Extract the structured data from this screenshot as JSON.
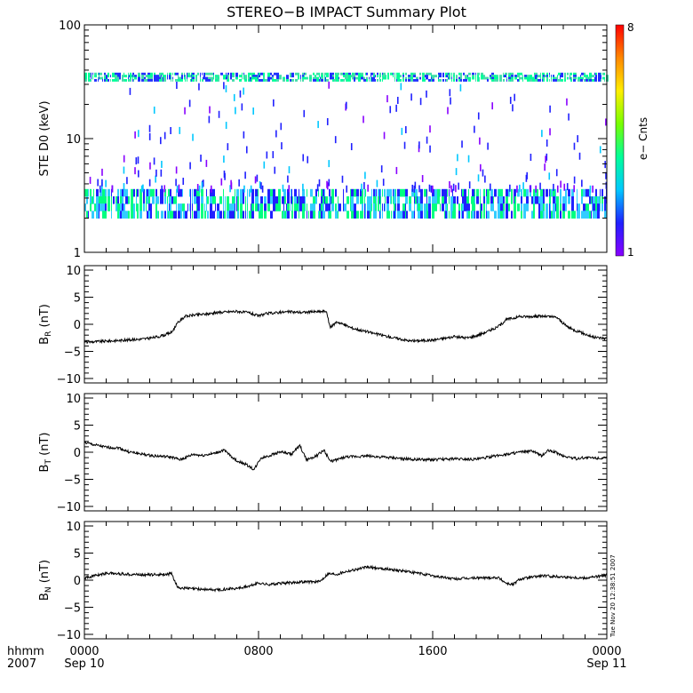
{
  "title": "STEREO−B IMPACT Summary Plot",
  "timestamp": "Tue Nov 20 12:38:51 2007",
  "footer": {
    "hhmm_label": "hhmm",
    "year_label": "2007"
  },
  "colorbar": {
    "label": "e− Cnts",
    "top_label": "8",
    "bottom_label": "1",
    "colors": [
      "#8800ff",
      "#2020ff",
      "#00c8ff",
      "#00ff99",
      "#77ff00",
      "#ffee00",
      "#ff8800",
      "#ff0000"
    ]
  },
  "chart_data": [
    {
      "type": "heatmap",
      "title": "STEREO−B IMPACT Summary Plot",
      "ylabel": "STE D0 (keV)",
      "yscale": "log",
      "ylim": [
        1,
        100
      ],
      "xlim_hours": [
        0,
        24
      ],
      "ytick_labels": [
        "1",
        "10",
        "100"
      ],
      "bands": [
        {
          "range_keV": [
            2.0,
            3.6
          ],
          "dominant_colors": [
            "#00ff80",
            "#33ccff",
            "#2020ff"
          ]
        },
        {
          "range_keV": [
            32,
            38
          ],
          "dominant_colors": [
            "#00ff99",
            "#44ddaa",
            "#2030ff"
          ]
        }
      ],
      "colorbar": {
        "label": "e− Cnts",
        "range": [
          1,
          8
        ]
      }
    },
    {
      "type": "line",
      "ylabel_main": "B",
      "ylabel_sub": "R",
      "ylabel_unit": " (nT)",
      "ylim": [
        -10,
        10
      ],
      "yticks": [
        "10",
        "5",
        "0",
        "−5",
        "−10"
      ],
      "x_hours": [
        0,
        1,
        2,
        3,
        3.6,
        4,
        4.3,
        4.6,
        5,
        5.6,
        6,
        6.6,
        7,
        7.6,
        8,
        8.4,
        9,
        9.4,
        10,
        10.6,
        11.1,
        11.3,
        11.6,
        12.3,
        13,
        14,
        15,
        16,
        17,
        17.6,
        18,
        18.6,
        19,
        19.4,
        20,
        21,
        21.7,
        22.1,
        22.4,
        23,
        23.4,
        24
      ],
      "y_nT": [
        -3.3,
        -3.1,
        -2.9,
        -2.6,
        -2.1,
        -1.5,
        0.3,
        1.4,
        1.7,
        1.9,
        2.1,
        2.3,
        2.4,
        2.1,
        1.5,
        2.0,
        2.2,
        2.3,
        2.2,
        2.3,
        2.4,
        -0.6,
        0.5,
        -0.7,
        -1.4,
        -2.3,
        -3.1,
        -2.9,
        -2.3,
        -2.5,
        -2.1,
        -1.2,
        -0.5,
        0.9,
        1.4,
        1.5,
        1.3,
        -0.2,
        -0.9,
        -1.8,
        -2.4,
        -2.6
      ]
    },
    {
      "type": "line",
      "ylabel_main": "B",
      "ylabel_sub": "T",
      "ylabel_unit": " (nT)",
      "ylim": [
        -10,
        10
      ],
      "yticks": [
        "10",
        "5",
        "0",
        "−5",
        "−10"
      ],
      "x_hours": [
        0,
        0.4,
        1,
        1.6,
        2,
        3,
        4,
        4.4,
        5,
        5.4,
        6,
        6.4,
        7,
        7.4,
        7.8,
        8.1,
        8.6,
        9,
        9.5,
        9.9,
        10.2,
        10.7,
        11,
        11.3,
        12,
        13,
        14,
        15,
        16,
        17,
        18,
        19,
        20,
        20.6,
        21,
        21.3,
        21.6,
        22,
        22.6,
        23,
        24
      ],
      "y_nT": [
        1.8,
        1.4,
        0.9,
        0.8,
        0.1,
        -0.6,
        -0.9,
        -1.4,
        -0.4,
        -0.6,
        -0.2,
        0.4,
        -1.6,
        -2.2,
        -3.2,
        -1.1,
        -0.5,
        0.1,
        -0.4,
        1.2,
        -1.4,
        -0.6,
        0.4,
        -1.7,
        -0.9,
        -0.7,
        -1.0,
        -1.3,
        -1.4,
        -1.2,
        -1.3,
        -0.6,
        0.0,
        0.2,
        -0.7,
        0.3,
        0.1,
        -0.7,
        -1.2,
        -1.0,
        -1.1
      ]
    },
    {
      "type": "line",
      "ylabel_main": "B",
      "ylabel_sub": "N",
      "ylabel_unit": " (nT)",
      "ylim": [
        -10,
        10
      ],
      "yticks": [
        "10",
        "5",
        "0",
        "−5",
        "−10"
      ],
      "x_hours": [
        0,
        1,
        2,
        3,
        3.8,
        4,
        4.3,
        5,
        6,
        7,
        7.6,
        8,
        8.4,
        9,
        10,
        10.8,
        11.2,
        11.6,
        12,
        13,
        14,
        15,
        16,
        17,
        18,
        19,
        19.4,
        19.7,
        20,
        21,
        22,
        23,
        24
      ],
      "y_nT": [
        0.4,
        1.3,
        1.1,
        1.0,
        1.1,
        1.2,
        -1.4,
        -1.6,
        -1.8,
        -1.5,
        -1.1,
        -0.5,
        -0.8,
        -0.6,
        -0.3,
        -0.3,
        1.2,
        1.1,
        1.6,
        2.4,
        2.0,
        1.5,
        0.8,
        0.2,
        0.4,
        0.5,
        -0.6,
        -0.8,
        0.2,
        0.8,
        0.6,
        0.4,
        0.9
      ]
    }
  ],
  "x_axis": {
    "tick_labels": [
      "0000",
      "0800",
      "1600",
      "0000"
    ],
    "date_labels": [
      "Sep 10",
      "",
      "",
      "Sep 11"
    ],
    "xlim_hours": [
      0,
      24
    ]
  }
}
